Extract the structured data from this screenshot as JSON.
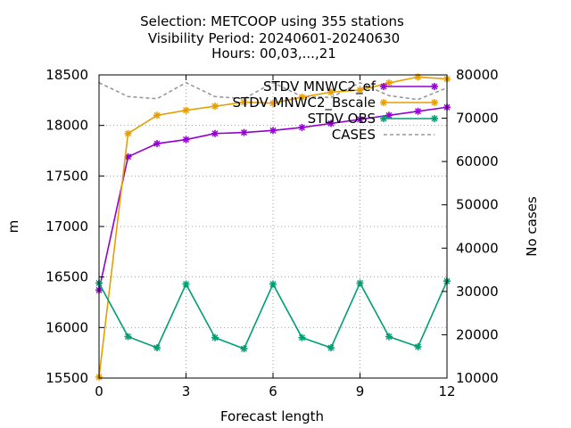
{
  "chart_data": {
    "type": "line",
    "title_lines": [
      "Selection: METCOOP using   355 stations",
      "Visibility   Period: 20240601-20240630",
      "Hours: 00,03,...,21"
    ],
    "xlabel": "Forecast length",
    "ylabel": "m",
    "y2label": "No cases",
    "x": [
      0,
      1,
      2,
      3,
      4,
      5,
      6,
      7,
      8,
      9,
      10,
      11,
      12
    ],
    "xticks": [
      "0",
      "3",
      "6",
      "9",
      "12"
    ],
    "xlim": [
      0,
      12
    ],
    "ylim": [
      15500,
      18500
    ],
    "yticks": [
      "15500",
      "16000",
      "16500",
      "17000",
      "17500",
      "18000",
      "18500"
    ],
    "y2lim": [
      10000,
      80000
    ],
    "y2ticks": [
      "10000",
      "20000",
      "30000",
      "40000",
      "50000",
      "60000",
      "70000",
      "80000"
    ],
    "grid": true,
    "legend_position": "top-right",
    "series": [
      {
        "name": "STDV MNWC2_ef",
        "color": "#9400d3",
        "marker": "plus",
        "axis": "y",
        "values": [
          16370,
          17690,
          17820,
          17860,
          17920,
          17930,
          17950,
          17980,
          18020,
          18060,
          18100,
          18140,
          18180
        ]
      },
      {
        "name": "STDV MNWC2_Bscale",
        "color": "#e69f00",
        "marker": "plus",
        "axis": "y",
        "values": [
          15510,
          17920,
          18100,
          18150,
          18190,
          18230,
          18220,
          18280,
          18330,
          18350,
          18420,
          18480,
          18460
        ]
      },
      {
        "name": "STDV OBS",
        "color": "#009e73",
        "marker": "plus",
        "axis": "y",
        "values": [
          16440,
          15910,
          15800,
          16430,
          15900,
          15790,
          16430,
          15900,
          15800,
          16440,
          15910,
          15810,
          16460
        ]
      },
      {
        "name": "CASES",
        "color": "#999999",
        "dash": true,
        "axis": "y2",
        "values": [
          78200,
          75000,
          74500,
          78200,
          75000,
          74500,
          78200,
          75000,
          74800,
          78200,
          75200,
          74300,
          77000
        ]
      }
    ]
  }
}
